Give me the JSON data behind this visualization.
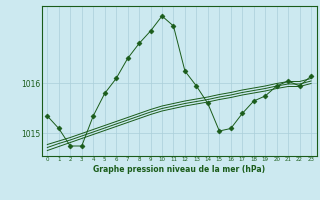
{
  "xlabel": "Graphe pression niveau de la mer (hPa)",
  "background_color": "#cce9f0",
  "line_color": "#1a5c1a",
  "grid_color": "#aacfda",
  "x_ticks": [
    0,
    1,
    2,
    3,
    4,
    5,
    6,
    7,
    8,
    9,
    10,
    11,
    12,
    13,
    14,
    15,
    16,
    17,
    18,
    19,
    20,
    21,
    22,
    23
  ],
  "ylim": [
    1014.55,
    1017.55
  ],
  "yticks": [
    1015,
    1016
  ],
  "jagged_series": [
    1015.35,
    1015.1,
    1014.75,
    1014.75,
    1015.35,
    1015.8,
    1016.1,
    1016.5,
    1016.8,
    1017.05,
    1017.35,
    1017.15,
    1016.25,
    1015.95,
    1015.6,
    1015.05,
    1015.1,
    1015.4,
    1015.65,
    1015.75,
    1015.95,
    1016.05,
    1015.95,
    1016.15
  ],
  "trend1": [
    1014.78,
    1014.85,
    1014.92,
    1015.0,
    1015.08,
    1015.16,
    1015.24,
    1015.32,
    1015.4,
    1015.48,
    1015.55,
    1015.6,
    1015.65,
    1015.69,
    1015.73,
    1015.78,
    1015.82,
    1015.87,
    1015.91,
    1015.95,
    1016.0,
    1016.04,
    1016.04,
    1016.1
  ],
  "trend2": [
    1014.72,
    1014.8,
    1014.87,
    1014.95,
    1015.03,
    1015.11,
    1015.19,
    1015.27,
    1015.35,
    1015.43,
    1015.5,
    1015.55,
    1015.6,
    1015.64,
    1015.68,
    1015.73,
    1015.77,
    1015.82,
    1015.86,
    1015.9,
    1015.95,
    1015.99,
    1015.99,
    1016.05
  ],
  "trend3": [
    1014.66,
    1014.74,
    1014.82,
    1014.9,
    1014.98,
    1015.06,
    1015.14,
    1015.22,
    1015.3,
    1015.38,
    1015.45,
    1015.5,
    1015.55,
    1015.59,
    1015.63,
    1015.68,
    1015.72,
    1015.77,
    1015.81,
    1015.85,
    1015.9,
    1015.94,
    1015.94,
    1016.0
  ]
}
